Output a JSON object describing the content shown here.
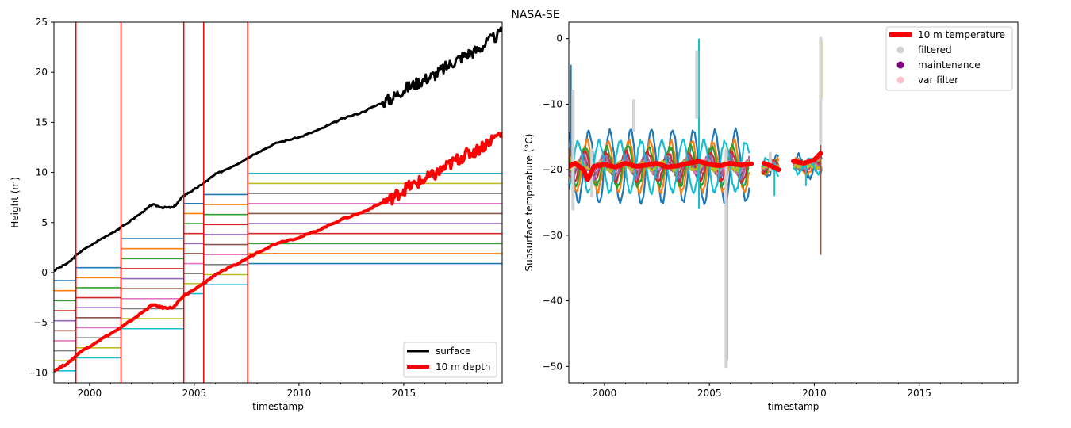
{
  "figure": {
    "title": "NASA-SE"
  },
  "chart_data": [
    {
      "type": "line",
      "xlabel": "timestamp",
      "ylabel": "Height (m)",
      "xlim": [
        1998.3,
        2019.7
      ],
      "ylim": [
        -11,
        25
      ],
      "xticks": [
        2000,
        2005,
        2010,
        2015
      ],
      "xtick_labels": [
        "2000",
        "2005",
        "2010",
        "2015"
      ],
      "yticks": [
        -10,
        -5,
        0,
        5,
        10,
        15,
        20,
        25
      ],
      "ytick_labels": [
        "−10",
        "−5",
        "0",
        "5",
        "10",
        "15",
        "20",
        "25"
      ],
      "grid": false,
      "legend_position": "lower-right",
      "series": [
        {
          "name": "surface",
          "color": "#000000",
          "x": [
            1998.3,
            1999.0,
            1999.5,
            2000.5,
            2001.5,
            2002.5,
            2003.0,
            2003.5,
            2004.0,
            2004.5,
            2005.0,
            2005.5,
            2006.0,
            2007.0,
            2008.0,
            2009.0,
            2010.0,
            2011.0,
            2012.0,
            2013.0,
            2014.0,
            2014.5,
            2015.0,
            2015.5,
            2016.0,
            2016.5,
            2017.0,
            2017.5,
            2018.0,
            2018.5,
            2019.0,
            2019.7
          ],
          "y": [
            0.2,
            1.0,
            2.0,
            3.3,
            4.5,
            6.0,
            6.8,
            6.5,
            6.5,
            7.7,
            8.3,
            9.0,
            9.8,
            10.8,
            12.0,
            13.0,
            13.5,
            14.3,
            15.3,
            16.0,
            17.0,
            17.5,
            18.3,
            18.8,
            19.3,
            19.8,
            20.5,
            21.2,
            21.8,
            22.2,
            23.0,
            24.0
          ]
        },
        {
          "name": "10 m depth",
          "color": "#ff0000",
          "x": [
            1998.3,
            1999.0,
            1999.5,
            2000.5,
            2001.5,
            2002.5,
            2003.0,
            2003.5,
            2004.0,
            2004.5,
            2005.0,
            2005.5,
            2006.0,
            2007.0,
            2008.0,
            2009.0,
            2010.0,
            2011.0,
            2012.0,
            2013.0,
            2014.0,
            2014.5,
            2015.0,
            2015.5,
            2016.0,
            2016.5,
            2017.0,
            2017.5,
            2018.0,
            2018.5,
            2019.0,
            2019.7
          ],
          "y": [
            -9.8,
            -9.0,
            -8.0,
            -6.7,
            -5.5,
            -4.0,
            -3.2,
            -3.5,
            -3.5,
            -2.3,
            -1.7,
            -1.0,
            -0.2,
            0.8,
            2.0,
            3.0,
            3.5,
            4.3,
            5.3,
            6.0,
            7.0,
            7.5,
            8.3,
            8.8,
            9.3,
            9.8,
            10.5,
            11.2,
            11.8,
            12.2,
            13.0,
            14.0
          ]
        }
      ],
      "thermistor_depths": {
        "colors": [
          "#1f77b4",
          "#ff7f0e",
          "#2ca02c",
          "#d62728",
          "#9467bd",
          "#8c564b",
          "#e377c2",
          "#7f7f7f",
          "#bcbd22",
          "#17becf"
        ],
        "periods": [
          {
            "start": 1998.3,
            "end": 1999.35,
            "levels": [
              -0.8,
              -1.8,
              -2.8,
              -3.8,
              -4.8,
              -5.8,
              -6.8,
              -7.8,
              -8.8,
              -9.8
            ]
          },
          {
            "start": 1999.35,
            "end": 2001.5,
            "levels": [
              0.5,
              -0.5,
              -1.5,
              -2.5,
              -3.5,
              -4.5,
              -5.5,
              -6.5,
              -7.5,
              -8.5
            ]
          },
          {
            "start": 2001.5,
            "end": 2004.5,
            "levels": [
              3.4,
              2.4,
              1.4,
              0.4,
              -0.6,
              -1.6,
              -2.6,
              -3.6,
              -4.6,
              -5.6
            ]
          },
          {
            "start": 2004.5,
            "end": 2005.45,
            "levels": [
              6.9,
              5.9,
              4.9,
              3.9,
              2.9,
              1.9,
              0.9,
              -0.1,
              -1.1,
              -2.1
            ]
          },
          {
            "start": 2005.45,
            "end": 2007.55,
            "levels": [
              7.8,
              6.8,
              5.8,
              4.8,
              3.8,
              2.8,
              1.8,
              0.8,
              -0.2,
              -1.2
            ]
          },
          {
            "start": 2007.55,
            "end": 2019.7,
            "levels": [
              0.9,
              1.9,
              2.9,
              3.9,
              4.9,
              5.9,
              6.9,
              7.9,
              8.9,
              9.9
            ]
          }
        ]
      },
      "maintenance_lines": {
        "color": "#ff0000",
        "x": [
          1999.35,
          2001.5,
          2004.5,
          2005.45,
          2007.55
        ]
      }
    },
    {
      "type": "line",
      "xlabel": "timestamp",
      "ylabel": "Subsurface temperature (°C)",
      "xlim": [
        1998.3,
        2019.7
      ],
      "ylim": [
        -52.5,
        2.5
      ],
      "xticks": [
        2000,
        2005,
        2010,
        2015
      ],
      "xtick_labels": [
        "2000",
        "2005",
        "2010",
        "2015"
      ],
      "yticks": [
        -50,
        -40,
        -30,
        -20,
        -10,
        0
      ],
      "ytick_labels": [
        "−50",
        "−40",
        "−30",
        "−20",
        "−10",
        "0"
      ],
      "grid": false,
      "legend_position": "top-right",
      "legend": [
        {
          "label": "10 m temperature",
          "marker": "line",
          "color": "#ff0000"
        },
        {
          "label": "filtered",
          "marker": "dot",
          "color": "#d3d3d3"
        },
        {
          "label": "maintenance",
          "marker": "dot",
          "color": "#800080"
        },
        {
          "label": "var filter",
          "marker": "dot",
          "color": "#ffc0cb"
        }
      ],
      "series": [
        {
          "name": "10 m temperature",
          "color": "#ff0000",
          "segments": [
            {
              "x": [
                1998.3,
                1998.6,
                1999.0,
                1999.2,
                1999.5,
                2000.0,
                2000.5,
                2001.0,
                2001.5,
                2002.0,
                2002.5,
                2003.0,
                2003.5,
                2004.0,
                2004.5,
                2005.0,
                2005.5,
                2006.0,
                2006.5,
                2007.0
              ],
              "y": [
                -19.5,
                -19.0,
                -20.0,
                -21.5,
                -19.5,
                -19.2,
                -19.6,
                -19.0,
                -19.5,
                -19.3,
                -19.0,
                -19.6,
                -19.4,
                -19.0,
                -18.7,
                -19.2,
                -19.4,
                -19.0,
                -19.3,
                -19.1
              ]
            },
            {
              "x": [
                2007.6,
                2008.0,
                2008.3
              ],
              "y": [
                -19.0,
                -19.5,
                -20.0
              ]
            },
            {
              "x": [
                2009.0,
                2009.5,
                2010.0,
                2010.3
              ],
              "y": [
                -18.7,
                -19.0,
                -18.5,
                -17.5
              ]
            }
          ]
        }
      ],
      "filtered_spikes": {
        "color": "#d3d3d3",
        "points": [
          {
            "x": 1998.5,
            "y_top": -8,
            "y_bottom": -26
          },
          {
            "x": 1999.4,
            "y_top": -17,
            "y_bottom": -24
          },
          {
            "x": 2001.4,
            "y_top": -9.5,
            "y_bottom": -14
          },
          {
            "x": 2004.4,
            "y_top": -2,
            "y_bottom": -12
          },
          {
            "x": 2005.8,
            "y_top": -17,
            "y_bottom": -50
          },
          {
            "x": 2007.9,
            "y_top": -17.5,
            "y_bottom": -20
          },
          {
            "x": 2010.3,
            "y_top": 0,
            "y_bottom": -16
          }
        ]
      },
      "channel_series": {
        "colors": [
          "#1f77b4",
          "#ff7f0e",
          "#2ca02c",
          "#d62728",
          "#9467bd",
          "#8c564b",
          "#e377c2",
          "#7f7f7f",
          "#bcbd22",
          "#17becf"
        ],
        "amplitudes": [
          10,
          7,
          5.5,
          4,
          3,
          2.2,
          1.6,
          1.2,
          0.9,
          7
        ],
        "phases": [
          0.0,
          0.5,
          0.9,
          1.3,
          1.7,
          2.0,
          2.3,
          2.6,
          2.9,
          3.2
        ],
        "mean": -19.5,
        "segments": [
          [
            1998.3,
            2006.9
          ],
          [
            2007.5,
            2008.3
          ],
          [
            2009.0,
            2010.35
          ]
        ],
        "outliers": [
          {
            "x": 1998.4,
            "y_top": -4,
            "y_bottom": -18,
            "color": "#1f77b4"
          },
          {
            "x": 2004.5,
            "y_top": 0,
            "y_bottom": -26,
            "color": "#17becf"
          },
          {
            "x": 2005.85,
            "y_top": -22,
            "y_bottom": -49,
            "color": "#8c564b"
          },
          {
            "x": 2010.3,
            "y_top": -5,
            "y_bottom": -33,
            "color": "#8c564b"
          },
          {
            "x": 2010.35,
            "y_top": -0.5,
            "y_bottom": -9,
            "color": "#bcbd22"
          },
          {
            "x": 2008.1,
            "y_top": -19,
            "y_bottom": -24,
            "color": "#17becf"
          },
          {
            "x": 2009.6,
            "y_top": -19,
            "y_bottom": -22.5,
            "color": "#17becf"
          }
        ]
      }
    }
  ]
}
